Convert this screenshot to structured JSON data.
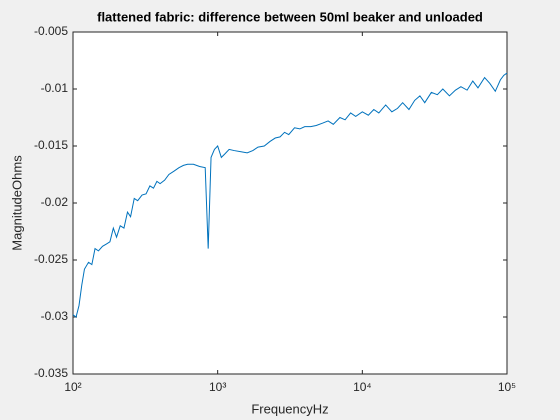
{
  "chart_data": {
    "type": "line",
    "title": "flattened fabric: difference between 50ml beaker and unloaded",
    "xlabel": "FrequencyHz",
    "ylabel": "MagnitudeOhms",
    "xscale": "log",
    "xlim": [
      100,
      100000
    ],
    "xticks": [
      {
        "value": 100,
        "label": "10²"
      },
      {
        "value": 1000,
        "label": "10³"
      },
      {
        "value": 10000,
        "label": "10⁴"
      },
      {
        "value": 100000,
        "label": "10⁵"
      }
    ],
    "ylim": [
      -0.035,
      -0.005
    ],
    "yticks": [
      -0.035,
      -0.03,
      -0.025,
      -0.02,
      -0.015,
      -0.01,
      -0.005
    ],
    "grid": false,
    "series": [
      {
        "color": "#0072bd",
        "x": [
          100,
          105,
          110,
          115,
          120,
          128,
          135,
          142,
          150,
          160,
          170,
          180,
          190,
          200,
          212,
          225,
          238,
          250,
          265,
          280,
          300,
          320,
          340,
          360,
          380,
          400,
          430,
          460,
          500,
          540,
          580,
          620,
          680,
          750,
          820,
          860,
          900,
          950,
          1000,
          1060,
          1120,
          1200,
          1300,
          1450,
          1600,
          1750,
          1900,
          2100,
          2300,
          2500,
          2700,
          2900,
          3100,
          3400,
          3700,
          4000,
          4400,
          4800,
          5300,
          5800,
          6300,
          7000,
          7600,
          8300,
          9000,
          10000,
          11000,
          12000,
          13000,
          14500,
          16000,
          17500,
          19000,
          21000,
          23000,
          25000,
          27000,
          30000,
          33000,
          36000,
          40000,
          44000,
          48000,
          53000,
          58000,
          63000,
          70000,
          76000,
          83000,
          90000,
          95000,
          100000
        ],
        "values": [
          -0.0298,
          -0.03,
          -0.029,
          -0.0272,
          -0.0258,
          -0.0252,
          -0.0254,
          -0.024,
          -0.0242,
          -0.0238,
          -0.0236,
          -0.0234,
          -0.0222,
          -0.023,
          -0.022,
          -0.0222,
          -0.0208,
          -0.0212,
          -0.0196,
          -0.0198,
          -0.0193,
          -0.0192,
          -0.0185,
          -0.0187,
          -0.0181,
          -0.0183,
          -0.018,
          -0.0175,
          -0.0172,
          -0.0169,
          -0.0167,
          -0.0166,
          -0.0166,
          -0.0168,
          -0.0169,
          -0.024,
          -0.016,
          -0.0153,
          -0.015,
          -0.016,
          -0.0157,
          -0.0153,
          -0.0154,
          -0.0155,
          -0.0156,
          -0.0154,
          -0.0151,
          -0.015,
          -0.0146,
          -0.0143,
          -0.0142,
          -0.0138,
          -0.014,
          -0.0134,
          -0.0135,
          -0.0133,
          -0.0133,
          -0.0132,
          -0.013,
          -0.0128,
          -0.0131,
          -0.0125,
          -0.0127,
          -0.0121,
          -0.0124,
          -0.012,
          -0.0123,
          -0.0118,
          -0.0121,
          -0.0114,
          -0.012,
          -0.0117,
          -0.0112,
          -0.0118,
          -0.011,
          -0.0106,
          -0.0112,
          -0.0103,
          -0.0105,
          -0.01,
          -0.0106,
          -0.0101,
          -0.0098,
          -0.0101,
          -0.0093,
          -0.0099,
          -0.009,
          -0.0095,
          -0.0102,
          -0.0092,
          -0.0088,
          -0.0086
        ]
      }
    ]
  }
}
